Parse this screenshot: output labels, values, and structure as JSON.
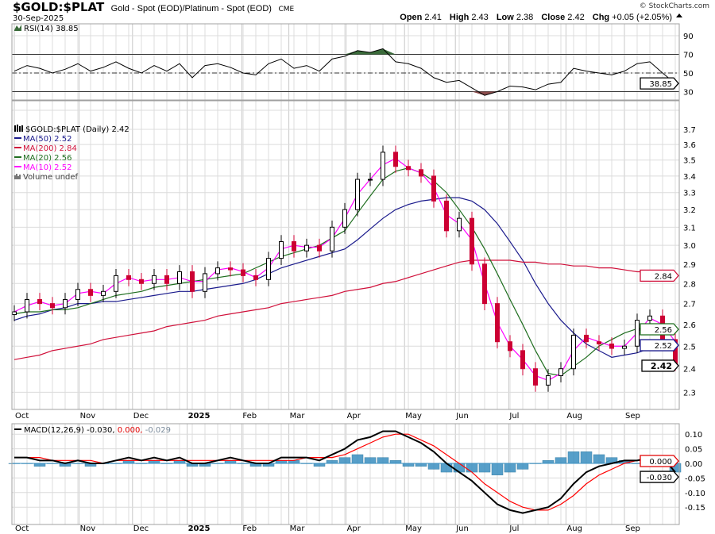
{
  "header": {
    "symbol": "$GOLD:$PLAT",
    "description": "Gold - Spot (EOD)/Platinum - Spot (EOD)",
    "exchange": "CME",
    "date": "30-Sep-2025",
    "watermark": "© StockCharts.com",
    "open_label": "Open",
    "open": "2.41",
    "high_label": "High",
    "high": "2.43",
    "low_label": "Low",
    "low": "2.38",
    "close_label": "Close",
    "close": "2.42",
    "chg_label": "Chg",
    "chg": "+0.05 (+2.05%)",
    "chg_icon": "triangle-up-icon"
  },
  "legends": {
    "rsi": "RSI(14) 38.85",
    "price": "$GOLD:$PLAT (Daily) 2.42",
    "ma50": "MA(50) 2.52",
    "ma200": "MA(200) 2.84",
    "ma20": "MA(20) 2.56",
    "ma10": "MA(10) 2.52",
    "volume": "Volume undef",
    "macd_name": "MACD(12,26,9)",
    "macd_val": "-0.030,",
    "macd_signal": "0.000,",
    "macd_hist": "-0.029"
  },
  "tags": {
    "rsi": "38.85",
    "ma200": "2.84",
    "ma20": "2.56",
    "ma50": "2.52",
    "close": "2.42",
    "macd_signal": "0.000",
    "macd": "-0.030"
  },
  "colors": {
    "up": "#000000",
    "down": "#cc0033",
    "ma50": "#1a1a8c",
    "ma200": "#d0103a",
    "ma20": "#1f6e1f",
    "ma10": "#ff00ff",
    "macd": "#000000",
    "signal": "#ff0000",
    "hist": "#3a8fc0",
    "rsi_over": "#3a6b3a",
    "rsi_under": "#8a4a4a"
  },
  "chart_data": [
    {
      "type": "line",
      "name": "RSI(14)",
      "yscale": "linear",
      "ylim": [
        0,
        100
      ],
      "yticks": [
        "90",
        "70",
        "50",
        "30"
      ],
      "reference_lines": [
        70,
        50,
        30
      ],
      "values": [
        52,
        58,
        55,
        50,
        54,
        60,
        52,
        56,
        62,
        55,
        50,
        58,
        52,
        60,
        45,
        58,
        60,
        56,
        50,
        48,
        60,
        65,
        55,
        58,
        52,
        65,
        68,
        74,
        72,
        76,
        62,
        60,
        55,
        45,
        40,
        42,
        34,
        26,
        30,
        36,
        35,
        32,
        38,
        40,
        55,
        52,
        50,
        48,
        52,
        60,
        62,
        50,
        38.85
      ]
    },
    {
      "type": "candlestick",
      "yscale": "log",
      "ylim": [
        2.22,
        3.78
      ],
      "yticks": [
        "3.7",
        "3.6",
        "3.5",
        "3.4",
        "3.3",
        "3.2",
        "3.1",
        "3.0",
        "2.9",
        "2.8",
        "2.7",
        "2.6",
        "2.5",
        "2.4",
        "2.3"
      ],
      "grid": true,
      "close": [
        2.66,
        2.72,
        2.7,
        2.68,
        2.72,
        2.77,
        2.74,
        2.76,
        2.84,
        2.82,
        2.8,
        2.84,
        2.8,
        2.86,
        2.76,
        2.85,
        2.88,
        2.87,
        2.84,
        2.82,
        2.93,
        3.02,
        2.97,
        3.0,
        2.97,
        3.1,
        3.2,
        3.38,
        3.38,
        3.55,
        3.46,
        3.44,
        3.4,
        3.25,
        3.08,
        3.15,
        2.9,
        2.7,
        2.52,
        2.48,
        2.4,
        2.33,
        2.37,
        2.4,
        2.55,
        2.52,
        2.51,
        2.49,
        2.5,
        2.62,
        2.64,
        2.53,
        2.42
      ],
      "series": [
        {
          "name": "MA(50)",
          "values": [
            2.62,
            2.64,
            2.65,
            2.67,
            2.68,
            2.7,
            2.7,
            2.71,
            2.71,
            2.72,
            2.73,
            2.74,
            2.75,
            2.76,
            2.76,
            2.77,
            2.78,
            2.79,
            2.8,
            2.82,
            2.85,
            2.88,
            2.9,
            2.92,
            2.94,
            2.96,
            2.98,
            3.03,
            3.09,
            3.15,
            3.2,
            3.23,
            3.25,
            3.26,
            3.27,
            3.27,
            3.25,
            3.2,
            3.12,
            3.02,
            2.92,
            2.8,
            2.7,
            2.62,
            2.56,
            2.51,
            2.48,
            2.45,
            2.46,
            2.47,
            2.49,
            2.51,
            2.52
          ]
        },
        {
          "name": "MA(200)",
          "values": [
            2.44,
            2.45,
            2.46,
            2.48,
            2.49,
            2.5,
            2.51,
            2.53,
            2.54,
            2.55,
            2.56,
            2.57,
            2.59,
            2.6,
            2.61,
            2.62,
            2.64,
            2.65,
            2.66,
            2.67,
            2.68,
            2.7,
            2.71,
            2.72,
            2.73,
            2.74,
            2.76,
            2.77,
            2.78,
            2.8,
            2.81,
            2.83,
            2.85,
            2.87,
            2.89,
            2.91,
            2.92,
            2.92,
            2.92,
            2.92,
            2.91,
            2.91,
            2.9,
            2.9,
            2.89,
            2.89,
            2.88,
            2.88,
            2.87,
            2.86,
            2.86,
            2.85,
            2.84
          ]
        },
        {
          "name": "MA(20)",
          "values": [
            2.65,
            2.66,
            2.66,
            2.67,
            2.67,
            2.68,
            2.7,
            2.72,
            2.74,
            2.75,
            2.76,
            2.78,
            2.79,
            2.8,
            2.81,
            2.82,
            2.83,
            2.84,
            2.85,
            2.88,
            2.91,
            2.94,
            2.96,
            2.98,
            3.0,
            3.04,
            3.08,
            3.18,
            3.28,
            3.38,
            3.43,
            3.45,
            3.42,
            3.37,
            3.3,
            3.2,
            3.1,
            2.98,
            2.85,
            2.72,
            2.6,
            2.48,
            2.38,
            2.37,
            2.41,
            2.45,
            2.5,
            2.53,
            2.56,
            2.58,
            2.59,
            2.59,
            2.56
          ]
        },
        {
          "name": "MA(10)",
          "values": [
            2.66,
            2.69,
            2.71,
            2.69,
            2.7,
            2.75,
            2.76,
            2.75,
            2.8,
            2.83,
            2.81,
            2.82,
            2.82,
            2.83,
            2.81,
            2.81,
            2.87,
            2.88,
            2.86,
            2.83,
            2.88,
            2.98,
            3.0,
            2.99,
            2.99,
            3.04,
            3.15,
            3.29,
            3.38,
            3.47,
            3.51,
            3.45,
            3.42,
            3.33,
            3.17,
            3.12,
            3.03,
            2.8,
            2.61,
            2.5,
            2.44,
            2.37,
            2.35,
            2.38,
            2.48,
            2.54,
            2.52,
            2.5,
            2.5,
            2.56,
            2.63,
            2.6,
            2.52
          ]
        }
      ]
    },
    {
      "type": "line",
      "name": "MACD(12,26,9)",
      "ylim": [
        -0.19,
        0.13
      ],
      "yticks": [
        "0.10",
        "0.05",
        "0.00",
        "-0.05",
        "-0.10",
        "-0.15"
      ],
      "series": [
        {
          "name": "MACD",
          "values": [
            0.02,
            0.02,
            0.01,
            0.01,
            0.0,
            0.01,
            0.0,
            0.0,
            0.01,
            0.02,
            0.01,
            0.02,
            0.01,
            0.02,
            0.0,
            0.0,
            0.01,
            0.02,
            0.01,
            0.0,
            0.0,
            0.02,
            0.02,
            0.02,
            0.01,
            0.03,
            0.05,
            0.08,
            0.09,
            0.11,
            0.11,
            0.09,
            0.07,
            0.04,
            0.0,
            -0.03,
            -0.06,
            -0.1,
            -0.14,
            -0.16,
            -0.17,
            -0.16,
            -0.15,
            -0.12,
            -0.07,
            -0.03,
            -0.01,
            0.0,
            0.01,
            0.01,
            0.02,
            0.02,
            -0.03
          ]
        },
        {
          "name": "Signal",
          "values": [
            0.02,
            0.02,
            0.02,
            0.01,
            0.01,
            0.01,
            0.01,
            0.0,
            0.01,
            0.01,
            0.01,
            0.01,
            0.01,
            0.01,
            0.01,
            0.01,
            0.01,
            0.01,
            0.01,
            0.01,
            0.01,
            0.01,
            0.01,
            0.02,
            0.02,
            0.02,
            0.03,
            0.05,
            0.07,
            0.09,
            0.1,
            0.1,
            0.08,
            0.06,
            0.03,
            0.0,
            -0.03,
            -0.07,
            -0.1,
            -0.13,
            -0.15,
            -0.16,
            -0.16,
            -0.14,
            -0.11,
            -0.07,
            -0.04,
            -0.02,
            0.0,
            0.01,
            0.01,
            0.02,
            0.0
          ]
        }
      ]
    }
  ],
  "x_axis": {
    "labels": [
      "Oct",
      "Nov",
      "Dec",
      "2025",
      "Feb",
      "Mar",
      "Apr",
      "May",
      "Jun",
      "Jul",
      "Aug",
      "Sep"
    ],
    "label_weeks": [
      0,
      5.1,
      9.3,
      13.6,
      17.9,
      21.6,
      26.1,
      30.7,
      34.7,
      38.9,
      43.4,
      48
    ]
  }
}
